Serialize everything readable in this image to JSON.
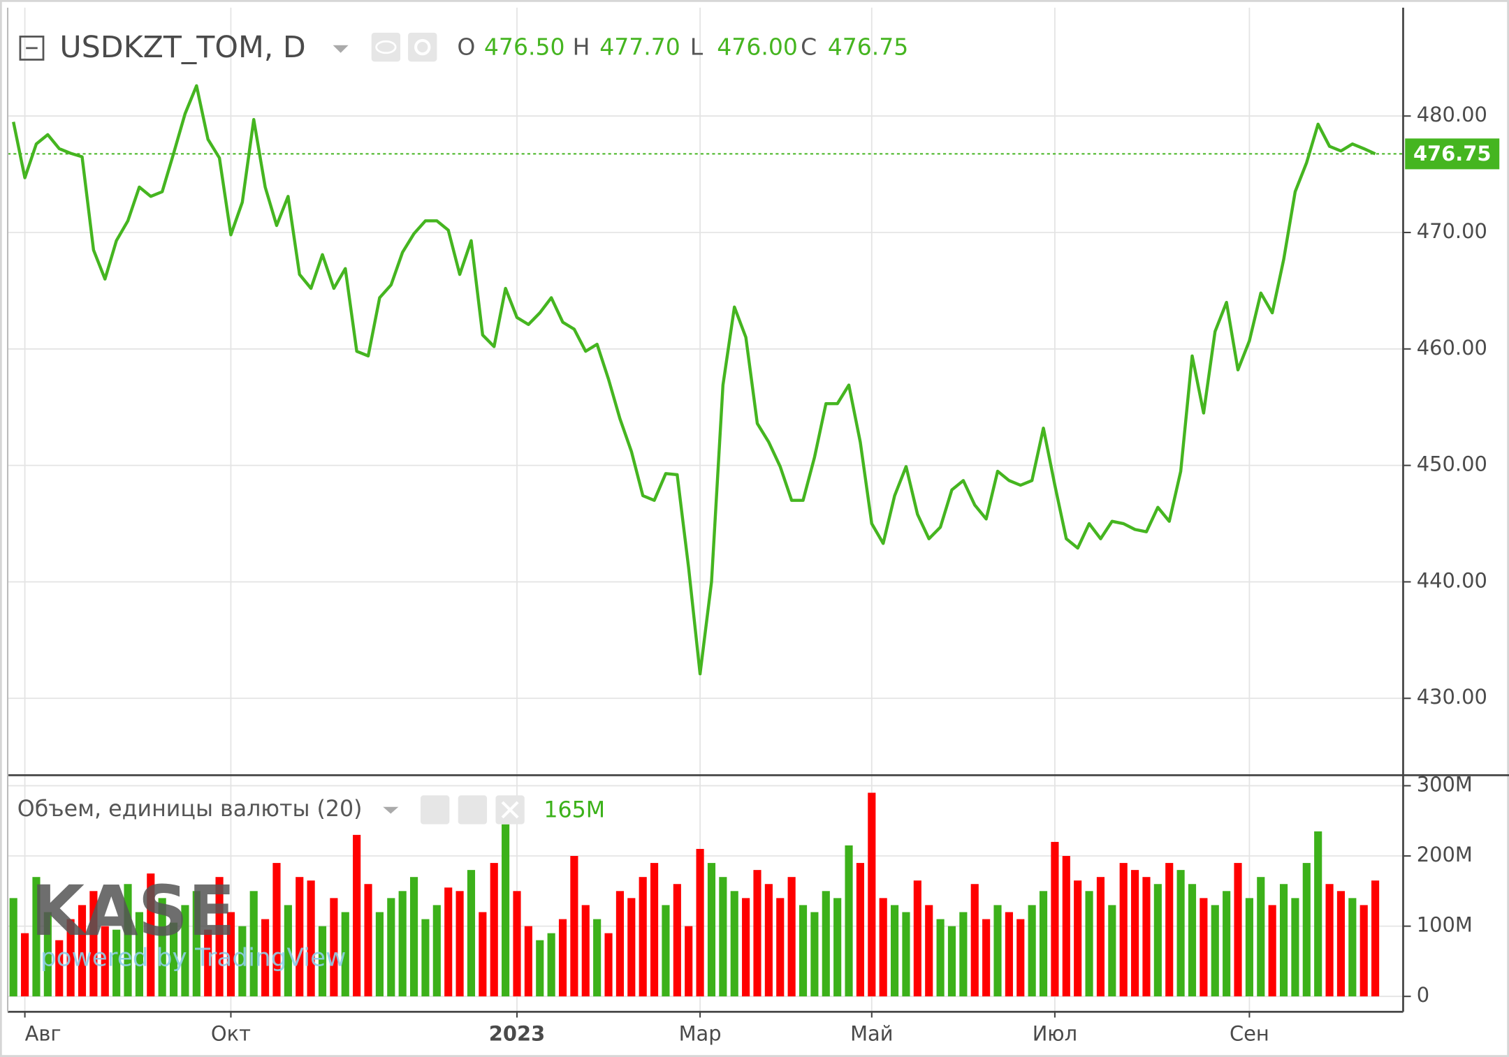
{
  "chart_data": [
    {
      "type": "line",
      "title": "USDKZT_TOM, D",
      "ohlc_labels": [
        "O",
        "H",
        "L",
        "C"
      ],
      "ohlc_values": [
        "476.50",
        "477.70",
        "476.00",
        "476.75"
      ],
      "watermark": "KASE",
      "watermark_note": "powered by TradingView",
      "color": "#45b520",
      "grid": true,
      "categories": [
        null,
        "Авг",
        null,
        null,
        null,
        null,
        null,
        null,
        null,
        null,
        null,
        null,
        null,
        null,
        null,
        null,
        null,
        null,
        null,
        "Окт",
        null,
        null,
        null,
        null,
        null,
        null,
        null,
        null,
        null,
        null,
        null,
        null,
        null,
        null,
        null,
        null,
        null,
        null,
        null,
        null,
        null,
        null,
        null,
        null,
        "2023",
        null,
        null,
        null,
        null,
        null,
        null,
        null,
        null,
        null,
        null,
        null,
        null,
        null,
        null,
        null,
        "Мар",
        null,
        null,
        null,
        null,
        null,
        null,
        null,
        null,
        null,
        null,
        null,
        null,
        null,
        null,
        "Май",
        null,
        null,
        null,
        null,
        null,
        null,
        null,
        null,
        null,
        null,
        null,
        null,
        null,
        null,
        null,
        "Июл",
        null,
        null,
        null,
        null,
        null,
        null,
        null,
        null,
        null,
        null,
        null,
        null,
        null,
        null,
        null,
        null,
        "Сен",
        null,
        null,
        null,
        null,
        null,
        null,
        null,
        null,
        null,
        null,
        null
      ],
      "values": [
        479.5,
        474.7,
        477.6,
        478.4,
        477.2,
        476.8,
        476.5,
        468.5,
        466.0,
        469.3,
        471.0,
        473.9,
        473.1,
        473.5,
        476.8,
        480.2,
        482.6,
        478.0,
        476.4,
        469.8,
        472.6,
        479.7,
        473.9,
        470.6,
        473.1,
        466.4,
        465.2,
        468.1,
        465.2,
        466.9,
        459.8,
        459.4,
        464.4,
        465.5,
        468.3,
        469.9,
        471.0,
        471.0,
        470.2,
        466.4,
        469.3,
        461.2,
        460.2,
        465.2,
        462.7,
        462.1,
        463.1,
        464.4,
        462.3,
        461.7,
        459.8,
        460.4,
        457.4,
        454.0,
        451.2,
        447.4,
        447.0,
        449.3,
        449.2,
        441.2,
        432.1,
        440.0,
        456.9,
        463.6,
        461.0,
        453.6,
        452.0,
        449.9,
        447.0,
        447.0,
        450.7,
        455.3,
        455.3,
        456.9,
        452.0,
        445.0,
        443.3,
        447.4,
        449.9,
        445.8,
        443.7,
        444.7,
        447.9,
        448.7,
        446.6,
        445.4,
        449.5,
        448.7,
        448.3,
        448.7,
        453.2,
        448.3,
        443.7,
        442.9,
        445.0,
        443.7,
        445.2,
        445.0,
        444.5,
        444.3,
        446.4,
        445.2,
        449.5,
        459.4,
        454.5,
        461.5,
        464.0,
        458.2,
        460.7,
        464.8,
        463.1,
        467.7,
        473.5,
        476.0,
        479.3,
        477.4,
        477.0,
        477.6,
        477.2,
        476.75
      ],
      "ylim": [
        423.4,
        489.3
      ],
      "yticks": [
        {
          "value": 430,
          "label": "430.00"
        },
        {
          "value": 440,
          "label": "440.00"
        },
        {
          "value": 450,
          "label": "450.00"
        },
        {
          "value": 460,
          "label": "460.00"
        },
        {
          "value": 470,
          "label": "470.00"
        },
        {
          "value": 480,
          "label": "480.00"
        }
      ]
    },
    {
      "type": "bar",
      "title": "Объем, единицы валюты (20)",
      "value_label": "165M",
      "up_color": "#3cb11a",
      "down_color": "#ff0000",
      "values": [
        140000000,
        90000000,
        170000000,
        120000000,
        80000000,
        110000000,
        130000000,
        150000000,
        100000000,
        95000000,
        160000000,
        120000000,
        175000000,
        140000000,
        105000000,
        130000000,
        150000000,
        95000000,
        170000000,
        120000000,
        100000000,
        150000000,
        110000000,
        190000000,
        130000000,
        170000000,
        165000000,
        100000000,
        140000000,
        120000000,
        230000000,
        160000000,
        120000000,
        140000000,
        150000000,
        170000000,
        110000000,
        130000000,
        155000000,
        150000000,
        180000000,
        120000000,
        190000000,
        245000000,
        150000000,
        100000000,
        80000000,
        90000000,
        110000000,
        200000000,
        130000000,
        110000000,
        90000000,
        150000000,
        140000000,
        170000000,
        190000000,
        130000000,
        160000000,
        100000000,
        210000000,
        190000000,
        170000000,
        150000000,
        140000000,
        180000000,
        160000000,
        140000000,
        170000000,
        130000000,
        120000000,
        150000000,
        140000000,
        215000000,
        190000000,
        290000000,
        140000000,
        130000000,
        120000000,
        165000000,
        130000000,
        110000000,
        100000000,
        120000000,
        160000000,
        110000000,
        130000000,
        120000000,
        110000000,
        130000000,
        150000000,
        220000000,
        200000000,
        165000000,
        150000000,
        170000000,
        130000000,
        190000000,
        180000000,
        170000000,
        160000000,
        190000000,
        180000000,
        160000000,
        140000000,
        130000000,
        150000000,
        190000000,
        140000000,
        170000000,
        130000000,
        160000000,
        140000000,
        190000000,
        235000000,
        160000000,
        150000000,
        140000000,
        130000000,
        165000000
      ],
      "ylim": [
        0,
        306800000
      ],
      "yticks": [
        0,
        {
          "value": 100000000,
          "label": "100M"
        },
        {
          "value": 200000000,
          "label": "200M"
        },
        {
          "value": 300000000,
          "label": "300M"
        }
      ]
    }
  ]
}
